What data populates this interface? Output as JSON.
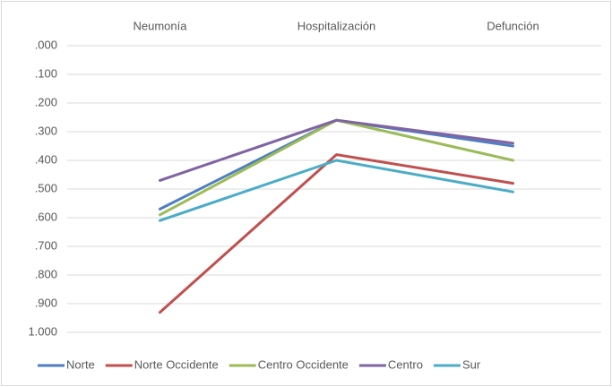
{
  "chart_data": {
    "type": "line",
    "categories": [
      "Neumonía",
      "Hospitalización",
      "Defunción"
    ],
    "series": [
      {
        "name": "Norte",
        "color": "#4f7fc0",
        "values": [
          0.57,
          0.26,
          0.35
        ]
      },
      {
        "name": "Norte Occidente",
        "color": "#c0504d",
        "values": [
          0.93,
          0.38,
          0.48
        ]
      },
      {
        "name": "Centro Occidente",
        "color": "#9bbb59",
        "values": [
          0.59,
          0.26,
          0.4
        ]
      },
      {
        "name": "Centro",
        "color": "#8064a2",
        "values": [
          0.47,
          0.26,
          0.34
        ]
      },
      {
        "name": "Sur",
        "color": "#4bacc6",
        "values": [
          0.61,
          0.4,
          0.51
        ]
      }
    ],
    "ylim": [
      0,
      1
    ],
    "y_reversed": true,
    "yticks": [
      {
        "value": 0,
        "label": ".000"
      },
      {
        "value": 0.1,
        "label": ".100"
      },
      {
        "value": 0.2,
        "label": ".200"
      },
      {
        "value": 0.3,
        "label": ".300"
      },
      {
        "value": 0.4,
        "label": ".400"
      },
      {
        "value": 0.5,
        "label": ".500"
      },
      {
        "value": 0.6,
        "label": ".600"
      },
      {
        "value": 0.7,
        "label": ".700"
      },
      {
        "value": 0.8,
        "label": ".800"
      },
      {
        "value": 0.9,
        "label": ".900"
      },
      {
        "value": 1,
        "label": "1.000"
      }
    ],
    "grid": true,
    "legend": "bottom"
  }
}
